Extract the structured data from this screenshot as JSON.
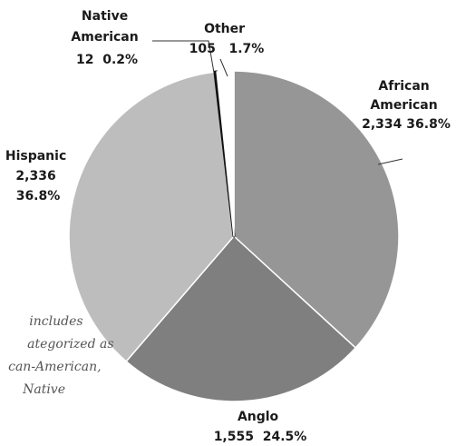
{
  "chart_data": {
    "type": "pie",
    "slices": [
      {
        "key": "african-american",
        "label_lines": [
          "African",
          "American",
          "2,334 36.8%"
        ],
        "count": 2334,
        "percent": 36.8,
        "color": "#969696"
      },
      {
        "key": "anglo",
        "label_lines": [
          "Anglo",
          "1,555  24.5%"
        ],
        "count": 1555,
        "percent": 24.5,
        "color": "#7f7f7f"
      },
      {
        "key": "hispanic",
        "label_lines": [
          "Hispanic",
          "2,336",
          "36.8%"
        ],
        "count": 2336,
        "percent": 36.8,
        "color": "#bdbdbd"
      },
      {
        "key": "native-american",
        "label_lines": [
          "Native",
          "American",
          "12  0.2%"
        ],
        "count": 12,
        "percent": 0.2,
        "color": "#111111"
      },
      {
        "key": "other",
        "label_lines": [
          "Other",
          "105   1.7%"
        ],
        "count": 105,
        "percent": 1.7,
        "color": "#ffffff"
      }
    ],
    "start_angle_deg": 0,
    "direction": "clockwise",
    "legend": "none"
  },
  "note_lines": [
    "includes",
    "ategorized as",
    "can-American,",
    "Native"
  ]
}
